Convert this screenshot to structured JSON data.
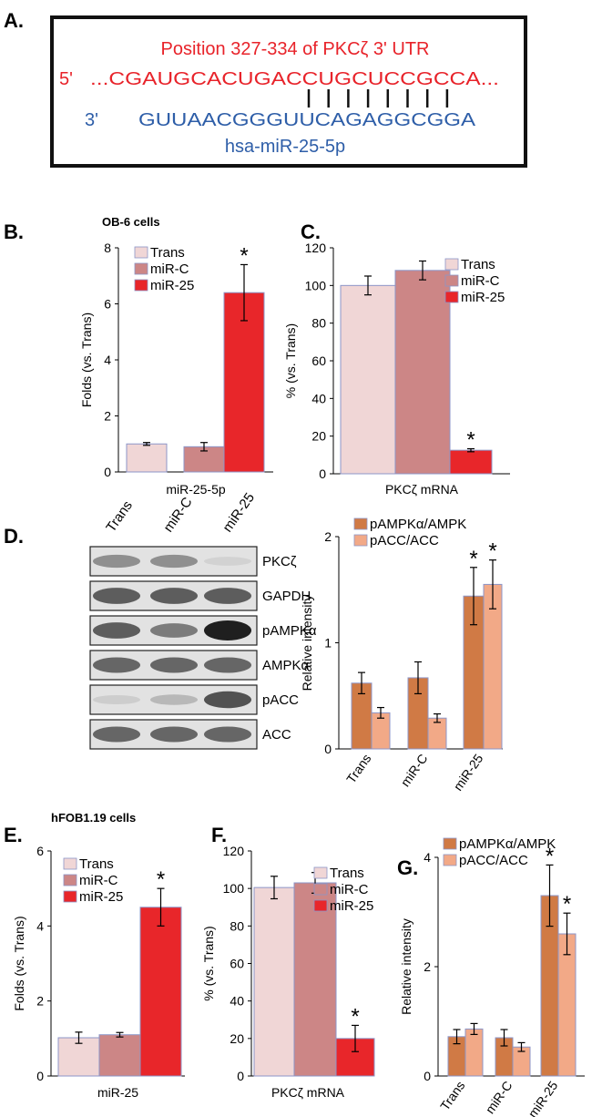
{
  "panel_a": {
    "label": "A.",
    "position_text": "Position 327-334 of PKCζ 3' UTR",
    "utr_end": "5'",
    "utr_seq": "...CGAUGCACUGACCUGCUCCGCCA...",
    "mir_end": "3'",
    "mir_seq": "GUUAACGGGUUCAGAGGCGGA",
    "mir_name": "hsa-miR-25-5p",
    "pair_lines": 8,
    "utr_color": "#e8232a",
    "mir_color": "#2e5ea8"
  },
  "western": {
    "label": "D.",
    "lanes": [
      "Trans",
      "miR-C",
      "miR-25"
    ],
    "rows": [
      {
        "label": "PKCζ",
        "intensity": [
          0.45,
          0.45,
          0.12
        ]
      },
      {
        "label": "GAPDH",
        "intensity": [
          0.7,
          0.7,
          0.7
        ]
      },
      {
        "label": "pAMPKα",
        "intensity": [
          0.7,
          0.55,
          1.0
        ]
      },
      {
        "label": "AMPKα",
        "intensity": [
          0.65,
          0.65,
          0.65
        ]
      },
      {
        "label": "pACC",
        "intensity": [
          0.15,
          0.25,
          0.75
        ]
      },
      {
        "label": "ACC",
        "intensity": [
          0.65,
          0.65,
          0.65
        ]
      }
    ]
  },
  "colors": {
    "trans": "#f0d6d6",
    "mirc": "#cc8686",
    "mir25": "#e8262a",
    "pampk": "#d07a45",
    "pacc": "#f2a987",
    "edge": "#8c96c8"
  },
  "chart_data": [
    {
      "id": "B",
      "panel_label": "B.",
      "type": "bar",
      "title": "OB-6 cells",
      "ylabel": "Folds (vs. Trans)",
      "xlabel": "miR-25-5p",
      "ylim": [
        0,
        8
      ],
      "yticks": [
        "0",
        "2",
        "4",
        "6",
        "8"
      ],
      "series": [
        {
          "name": "Trans",
          "values": [
            1.0
          ],
          "err": [
            0.05
          ],
          "color": "#f0d6d6"
        },
        {
          "name": "miR-C",
          "values": [
            0.9
          ],
          "err": [
            0.15
          ],
          "color": "#cc8686"
        },
        {
          "name": "miR-25",
          "values": [
            6.4
          ],
          "err": [
            1.0
          ],
          "color": "#e8262a"
        }
      ],
      "stars": [
        "",
        "",
        "*"
      ],
      "legend": "top-left"
    },
    {
      "id": "C",
      "panel_label": "C.",
      "type": "bar",
      "ylabel": "% (vs. Trans)",
      "xlabel": "PKCζ mRNA",
      "ylim": [
        0,
        120
      ],
      "yticks": [
        "0",
        "20",
        "40",
        "60",
        "80",
        "100",
        "120"
      ],
      "series": [
        {
          "name": "Trans",
          "values": [
            100
          ],
          "err": [
            5
          ],
          "color": "#f0d6d6"
        },
        {
          "name": "miR-C",
          "values": [
            108
          ],
          "err": [
            5
          ],
          "color": "#cc8686"
        },
        {
          "name": "miR-25",
          "values": [
            12.5
          ],
          "err": [
            0.8
          ],
          "color": "#e8262a"
        }
      ],
      "stars": [
        "",
        "",
        "*"
      ],
      "legend": "top-right"
    },
    {
      "id": "D",
      "type": "bar",
      "ylabel": "Relative intensity",
      "categories": [
        "Trans",
        "miR-C",
        "miR-25"
      ],
      "ylim": [
        0,
        2
      ],
      "yticks": [
        "0",
        "1",
        "2"
      ],
      "series": [
        {
          "name": "pAMPKα/AMPK",
          "values": [
            0.62,
            0.67,
            1.44
          ],
          "err": [
            0.1,
            0.15,
            0.27
          ],
          "color": "#d07a45"
        },
        {
          "name": "pACC/ACC",
          "values": [
            0.34,
            0.29,
            1.55
          ],
          "err": [
            0.05,
            0.04,
            0.23
          ],
          "color": "#f2a987"
        }
      ],
      "stars": [
        [
          "",
          ""
        ],
        [
          "",
          ""
        ],
        [
          "*",
          "*"
        ]
      ],
      "legend": "top-left"
    },
    {
      "id": "E",
      "panel_label": "E.",
      "type": "bar",
      "title": "hFOB1.19 cells",
      "ylabel": "Folds (vs. Trans)",
      "xlabel": "miR-25",
      "ylim": [
        0,
        6
      ],
      "yticks": [
        "0",
        "2",
        "4",
        "6"
      ],
      "series": [
        {
          "name": "Trans",
          "values": [
            1.02
          ],
          "err": [
            0.15
          ],
          "color": "#f0d6d6"
        },
        {
          "name": "miR-C",
          "values": [
            1.1
          ],
          "err": [
            0.06
          ],
          "color": "#cc8686"
        },
        {
          "name": "miR-25",
          "values": [
            4.5
          ],
          "err": [
            0.5
          ],
          "color": "#e8262a"
        }
      ],
      "stars": [
        "",
        "",
        "*"
      ],
      "legend": "top-left"
    },
    {
      "id": "F",
      "panel_label": "F.",
      "type": "bar",
      "ylabel": "% (vs. Trans)",
      "xlabel": "PKCζ mRNA",
      "ylim": [
        0,
        120
      ],
      "yticks": [
        "0",
        "20",
        "40",
        "60",
        "80",
        "100",
        "120"
      ],
      "series": [
        {
          "name": "Trans",
          "values": [
            100.5
          ],
          "err": [
            6
          ],
          "color": "#f0d6d6"
        },
        {
          "name": "miR-C",
          "values": [
            103
          ],
          "err": [
            5.5
          ],
          "color": "#cc8686"
        },
        {
          "name": "miR-25",
          "values": [
            20
          ],
          "err": [
            7
          ],
          "color": "#e8262a"
        }
      ],
      "stars": [
        "",
        "",
        "*"
      ],
      "legend": "top-right"
    },
    {
      "id": "G",
      "panel_label": "G.",
      "type": "bar",
      "ylabel": "Relative intensity",
      "categories": [
        "Trans",
        "miR-C",
        "miR-25"
      ],
      "ylim": [
        0,
        4
      ],
      "yticks": [
        "0",
        "2",
        "4"
      ],
      "series": [
        {
          "name": "pAMPKα/AMPK",
          "values": [
            0.72,
            0.7,
            3.3
          ],
          "err": [
            0.13,
            0.15,
            0.56
          ],
          "color": "#d07a45"
        },
        {
          "name": "pACC/ACC",
          "values": [
            0.86,
            0.53,
            2.6
          ],
          "err": [
            0.1,
            0.08,
            0.38
          ],
          "color": "#f2a987"
        }
      ],
      "stars": [
        [
          "",
          ""
        ],
        [
          "",
          ""
        ],
        [
          "*",
          "*"
        ]
      ],
      "legend": "top-left"
    }
  ]
}
